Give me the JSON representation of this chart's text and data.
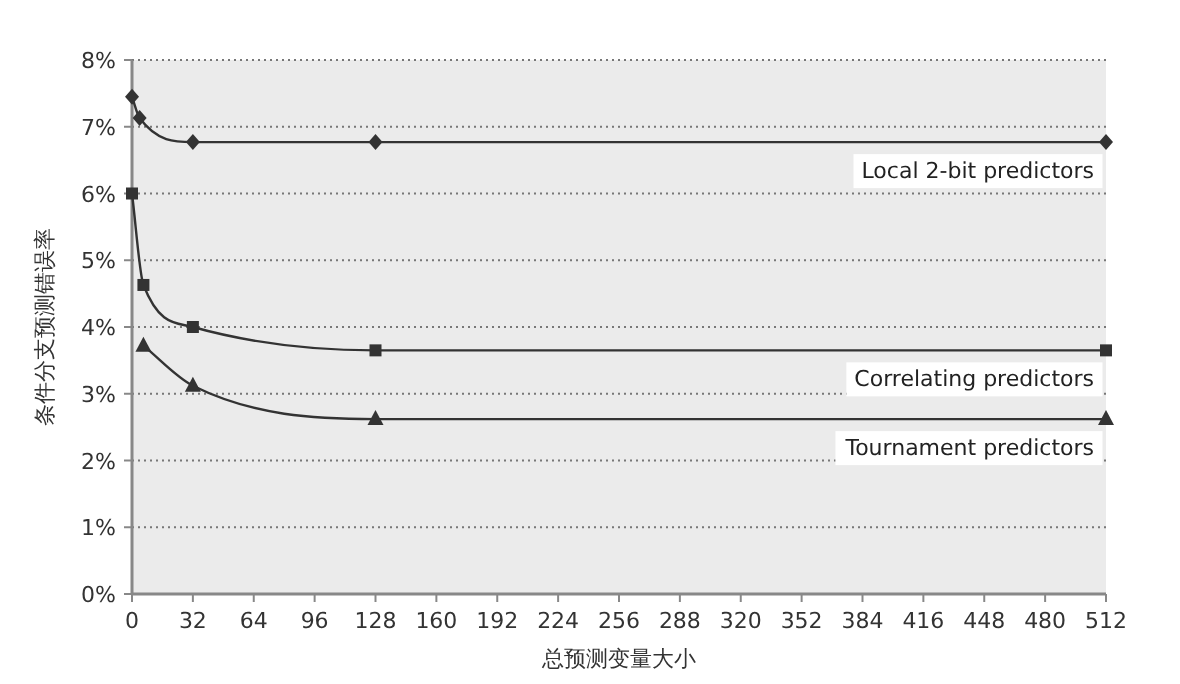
{
  "chart_data": {
    "type": "line",
    "xlabel": "总预测变量大小",
    "ylabel": "条件分支预测错误率",
    "xlim": [
      0,
      512
    ],
    "xticks": [
      0,
      32,
      64,
      96,
      128,
      160,
      192,
      224,
      256,
      288,
      320,
      352,
      384,
      416,
      448,
      480,
      512
    ],
    "ylim": [
      0,
      8
    ],
    "yticks": [
      {
        "value": 0,
        "label": "0%"
      },
      {
        "value": 1,
        "label": "1%"
      },
      {
        "value": 2,
        "label": "2%"
      },
      {
        "value": 3,
        "label": "3%"
      },
      {
        "value": 4,
        "label": "4%"
      },
      {
        "value": 5,
        "label": "5%"
      },
      {
        "value": 6,
        "label": "6%"
      },
      {
        "value": 7,
        "label": "7%"
      },
      {
        "value": 8,
        "label": "8%"
      }
    ],
    "grid": "y",
    "legend": false,
    "series": [
      {
        "name": "Local 2-bit predictors",
        "color": "#333333",
        "marker": "diamond",
        "x": [
          0,
          4,
          32,
          128,
          512
        ],
        "values": [
          7.45,
          7.13,
          6.77,
          6.77,
          6.77
        ]
      },
      {
        "name": "Correlating predictors",
        "color": "#333333",
        "marker": "square",
        "x": [
          0,
          6,
          32,
          128,
          512
        ],
        "values": [
          6.0,
          4.63,
          4.0,
          3.65,
          3.65
        ]
      },
      {
        "name": "Tournament predictors",
        "color": "#333333",
        "marker": "triangle",
        "x": [
          6,
          32,
          128,
          512
        ],
        "values": [
          3.72,
          3.12,
          2.62,
          2.62
        ]
      }
    ]
  }
}
